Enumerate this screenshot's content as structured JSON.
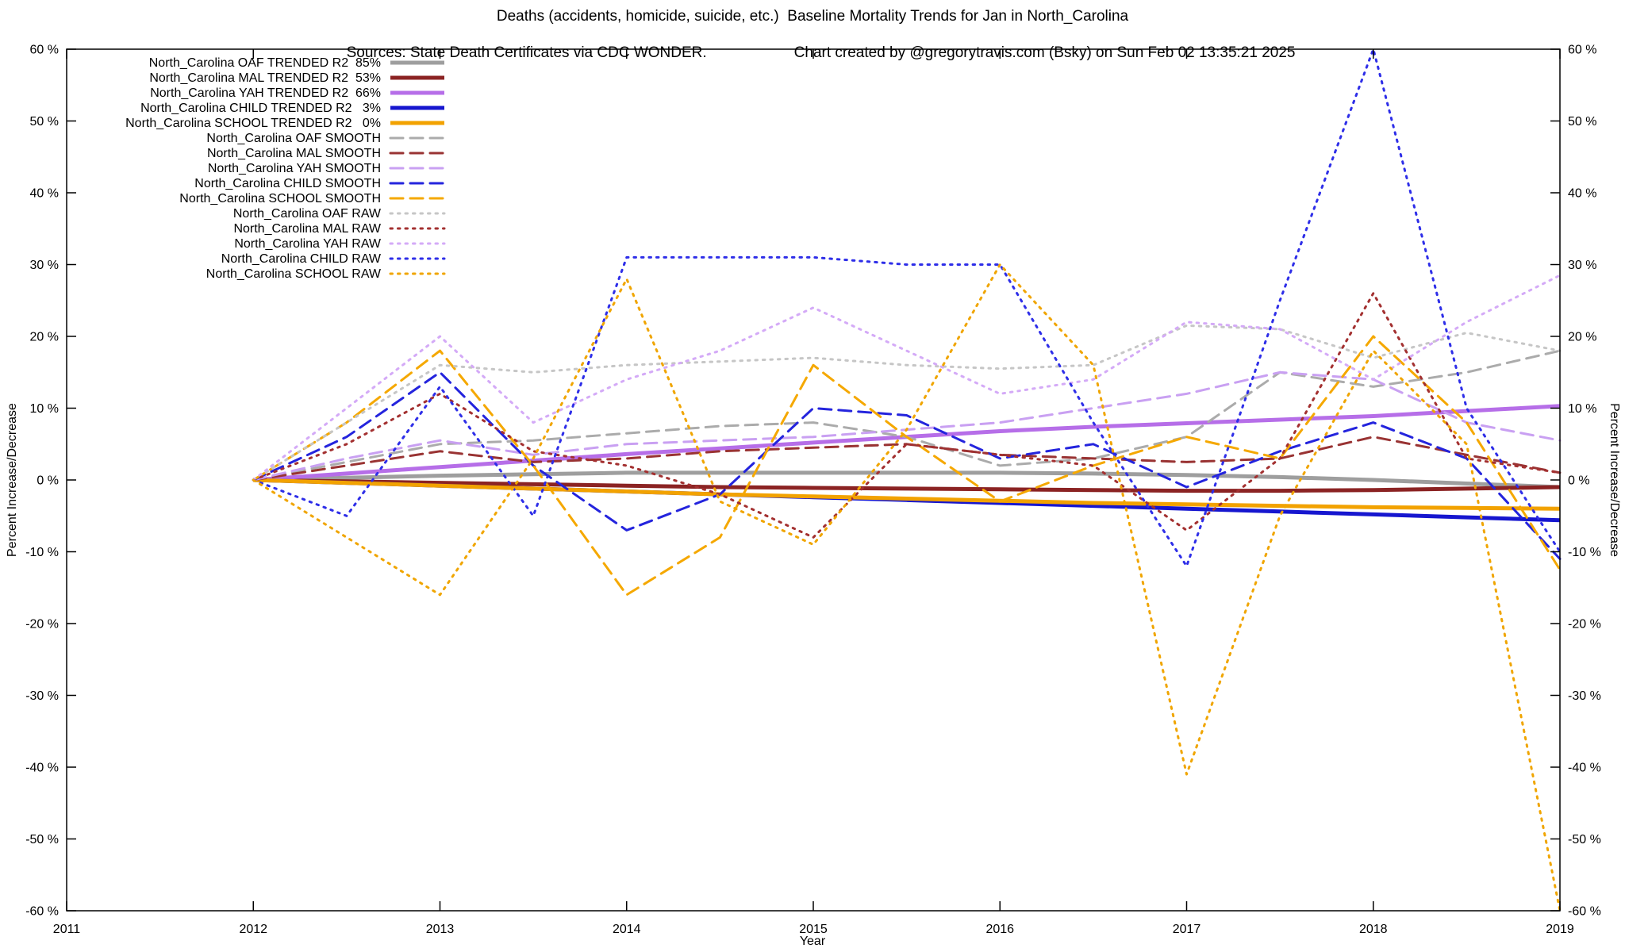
{
  "page": {
    "background": "#ffffff",
    "text_color": "#000000"
  },
  "chart_data": {
    "type": "line",
    "title": "Deaths (accidents, homicide, suicide, etc.)  Baseline Mortality Trends for Jan in North_Carolina",
    "subtitle_sources": "Sources: State Death Certificates via CDC WONDER.",
    "subtitle_credit": "Chart created by @gregorytravis.com (Bsky) on Sun Feb 02 13:35:21 2025",
    "xlabel": "Year",
    "ylabel_left": "Percent Increase/Decrease",
    "ylabel_right": "Percent Increase/Decrease",
    "xlim": [
      2011,
      2019
    ],
    "ylim": [
      -60,
      60
    ],
    "xticks": [
      2011,
      2012,
      2013,
      2014,
      2015,
      2016,
      2017,
      2018,
      2019
    ],
    "yticks": [
      60,
      50,
      40,
      30,
      20,
      10,
      0,
      -10,
      -20,
      -30,
      -40,
      -50,
      -60
    ],
    "ytick_suffix": " %",
    "grid": false,
    "legend_position": "top-left",
    "x": [
      2012,
      2012.5,
      2013,
      2013.5,
      2014,
      2014.5,
      2015,
      2015.5,
      2016,
      2016.5,
      2017,
      2017.5,
      2018,
      2018.5,
      2019
    ],
    "series": [
      {
        "id": "oaf-trended",
        "name": "North_Carolina OAF TRENDED R2  85%",
        "color": "#9e9e9e",
        "style": "solid",
        "width": 5,
        "values": [
          0,
          0.3,
          0.6,
          0.8,
          1,
          1,
          1,
          1,
          1,
          0.9,
          0.7,
          0.4,
          0,
          -0.5,
          -1
        ]
      },
      {
        "id": "mal-trended",
        "name": "North_Carolina MAL TRENDED R2  53%",
        "color": "#8b2323",
        "style": "solid",
        "width": 5,
        "values": [
          0,
          -0.2,
          -0.4,
          -0.6,
          -0.8,
          -1,
          -1.1,
          -1.2,
          -1.3,
          -1.4,
          -1.5,
          -1.5,
          -1.4,
          -1.2,
          -1
        ]
      },
      {
        "id": "yah-trended",
        "name": "North_Carolina YAH TRENDED R2  66%",
        "color": "#b66ee8",
        "style": "solid",
        "width": 5,
        "values": [
          0,
          0.9,
          1.8,
          2.7,
          3.6,
          4.4,
          5.2,
          6,
          6.8,
          7.4,
          7.9,
          8.4,
          8.9,
          9.6,
          10.3
        ]
      },
      {
        "id": "child-trended",
        "name": "North_Carolina CHILD TRENDED R2   3%",
        "color": "#1616cf",
        "style": "solid",
        "width": 5,
        "values": [
          0,
          -0.4,
          -0.8,
          -1.2,
          -1.6,
          -2,
          -2.4,
          -2.8,
          -3.2,
          -3.6,
          -4,
          -4.4,
          -4.8,
          -5.2,
          -5.6
        ]
      },
      {
        "id": "school-trended",
        "name": "North_Carolina SCHOOL TRENDED R2   0%",
        "color": "#f2a200",
        "style": "solid",
        "width": 5,
        "values": [
          0,
          -0.4,
          -0.8,
          -1.2,
          -1.6,
          -2,
          -2.3,
          -2.6,
          -2.9,
          -3.2,
          -3.4,
          -3.6,
          -3.8,
          -3.9,
          -4
        ]
      },
      {
        "id": "oaf-smooth",
        "name": "North_Carolina OAF SMOOTH",
        "color": "#ababab",
        "style": "dashed",
        "width": 3,
        "values": [
          0,
          2.5,
          5,
          5.5,
          6.5,
          7.5,
          8,
          6,
          2,
          3,
          6,
          15,
          13,
          15,
          18
        ]
      },
      {
        "id": "mal-smooth",
        "name": "North_Carolina MAL SMOOTH",
        "color": "#993333",
        "style": "dashed",
        "width": 3,
        "values": [
          0,
          2,
          4,
          2.5,
          3,
          4,
          4.5,
          5,
          3.5,
          3,
          2.5,
          3,
          6,
          3.5,
          1
        ]
      },
      {
        "id": "yah-smooth",
        "name": "North_Carolina YAH SMOOTH",
        "color": "#c9a0f2",
        "style": "dashed",
        "width": 3,
        "values": [
          0,
          3,
          5.5,
          3.5,
          5,
          5.5,
          6,
          7,
          8,
          10,
          12,
          15,
          14,
          8,
          5.5
        ]
      },
      {
        "id": "child-smooth",
        "name": "North_Carolina CHILD SMOOTH",
        "color": "#2424dd",
        "style": "dashed",
        "width": 3,
        "values": [
          0,
          6,
          15,
          2,
          -7,
          -2,
          10,
          9,
          3,
          5,
          -1,
          4,
          8,
          3,
          -11
        ]
      },
      {
        "id": "school-smooth",
        "name": "North_Carolina SCHOOL SMOOTH",
        "color": "#f5a800",
        "style": "dashed",
        "width": 3,
        "values": [
          0,
          8,
          18,
          2,
          -16,
          -8,
          16,
          6,
          -3,
          2,
          6,
          3,
          20,
          8,
          -12.5
        ]
      },
      {
        "id": "oaf-raw",
        "name": "North_Carolina OAF RAW",
        "color": "#c6c6c6",
        "style": "dotted",
        "width": 3,
        "values": [
          0,
          8,
          16,
          15,
          16,
          16.5,
          17,
          16,
          15.5,
          16,
          21.5,
          21,
          17,
          20.5,
          18
        ]
      },
      {
        "id": "mal-raw",
        "name": "North_Carolina MAL RAW",
        "color": "#a33030",
        "style": "dotted",
        "width": 3,
        "values": [
          0,
          5,
          12,
          4,
          2,
          -2,
          -8,
          5,
          3.5,
          2,
          -7,
          3,
          26,
          3,
          1
        ]
      },
      {
        "id": "yah-raw",
        "name": "North_Carolina YAH RAW",
        "color": "#d4aaf7",
        "style": "dotted",
        "width": 3,
        "values": [
          0,
          10,
          20,
          8,
          14,
          18,
          24,
          18,
          12,
          14,
          22,
          21,
          14,
          22,
          28.5
        ]
      },
      {
        "id": "child-raw",
        "name": "North_Carolina CHILD RAW",
        "color": "#2e2ee8",
        "style": "dotted",
        "width": 3,
        "values": [
          0,
          -5,
          13,
          -5,
          31,
          31,
          31,
          30,
          30,
          8,
          -12,
          25,
          60,
          10,
          -10
        ]
      },
      {
        "id": "school-raw",
        "name": "North_Carolina SCHOOL RAW",
        "color": "#f0a500",
        "style": "dotted",
        "width": 3,
        "values": [
          0,
          -8,
          -16,
          3,
          28,
          -3,
          -9,
          7,
          30,
          16,
          -41,
          -5,
          18,
          5,
          -60
        ]
      }
    ]
  }
}
